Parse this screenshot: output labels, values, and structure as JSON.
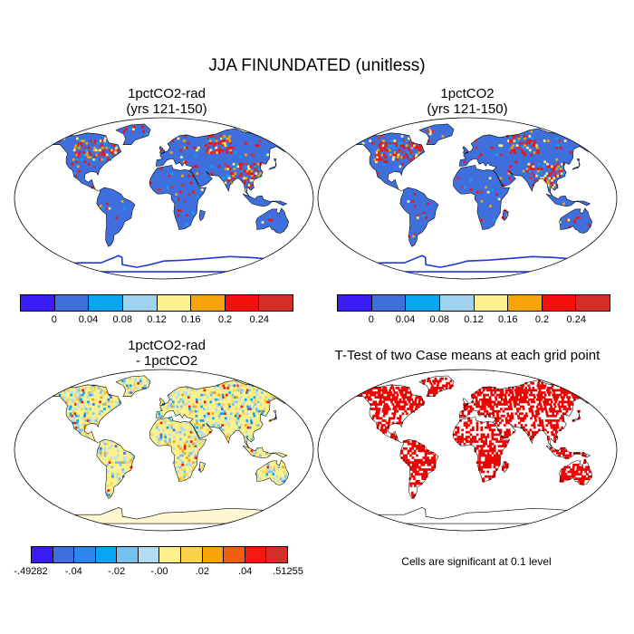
{
  "figure": {
    "title": "JJA FINUNDATED (unitless)"
  },
  "panels": [
    {
      "id": "top-left",
      "title": "1pctCO2-rad\n(yrs 121-150)",
      "field_style": "blue-with-hotspots"
    },
    {
      "id": "top-right",
      "title": "1pctCO2\n(yrs 121-150)",
      "field_style": "blue-with-hotspots"
    },
    {
      "id": "bottom-left",
      "title": "1pctCO2-rad\n- 1pctCO2",
      "field_style": "difference"
    },
    {
      "id": "bottom-right",
      "title": "T-Test of two Case means at each grid point",
      "field_style": "significance"
    }
  ],
  "colorbars": {
    "abs": {
      "colors": [
        "#3a1cf5",
        "#3f6fdc",
        "#0aa5f0",
        "#9ed2ee",
        "#fbf08c",
        "#f8a30a",
        "#f50f0f",
        "#d42e2b"
      ],
      "labels": [
        "0",
        "0.04",
        "0.08",
        "0.12",
        "0.16",
        "0.2",
        "0.24"
      ]
    },
    "diff": {
      "colors": [
        "#3a1cf5",
        "#3f6fdc",
        "#2c86ee",
        "#0aa5f0",
        "#75c2ee",
        "#b3dcf0",
        "#fbf08c",
        "#fad24c",
        "#f8a30a",
        "#f35e0d",
        "#ef1a12",
        "#d42e2b"
      ],
      "labels": [
        "-.49282",
        "-.04",
        "-.02",
        "-.00",
        ".02",
        ".04",
        ".51255"
      ]
    }
  },
  "significance_note": "Cells are significant at 0.1 level",
  "colors": {
    "ocean": "#ffffff",
    "land_base": "#3f6fdc",
    "diff_land": "#fbf08c",
    "significant": "#ee0000",
    "coast": "#000000"
  }
}
